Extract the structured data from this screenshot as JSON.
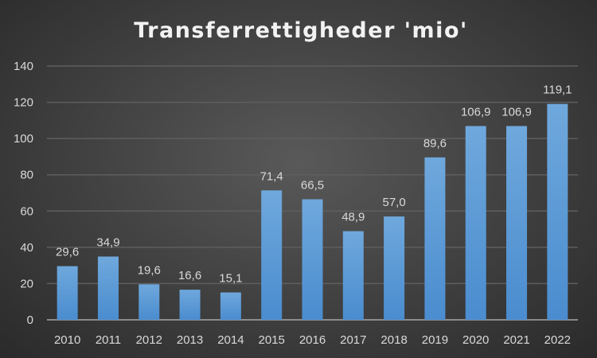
{
  "chart_data": {
    "type": "bar",
    "title": "Transferrettigheder 'mio'",
    "xlabel": "",
    "ylabel": "",
    "categories": [
      "2010",
      "2011",
      "2012",
      "2013",
      "2014",
      "2015",
      "2016",
      "2017",
      "2018",
      "2019",
      "2020",
      "2021",
      "2022"
    ],
    "values": [
      29.6,
      34.9,
      19.6,
      16.6,
      15.1,
      71.4,
      66.5,
      48.9,
      57.0,
      89.6,
      106.9,
      106.9,
      119.1
    ],
    "data_labels": [
      "29,6",
      "34,9",
      "19,6",
      "16,6",
      "15,1",
      "71,4",
      "66,5",
      "48,9",
      "57,0",
      "89,6",
      "106,9",
      "106,9",
      "119,1"
    ],
    "ylim": [
      0,
      140
    ],
    "yticks": [
      0,
      20,
      40,
      60,
      80,
      100,
      120,
      140
    ],
    "grid": true,
    "legend": "none",
    "colors": {
      "bar_top": "#6fa8dc",
      "bar_bottom": "#4a8ccf",
      "grid": "#5e5e5e",
      "axis": "#a6a6a6"
    }
  }
}
